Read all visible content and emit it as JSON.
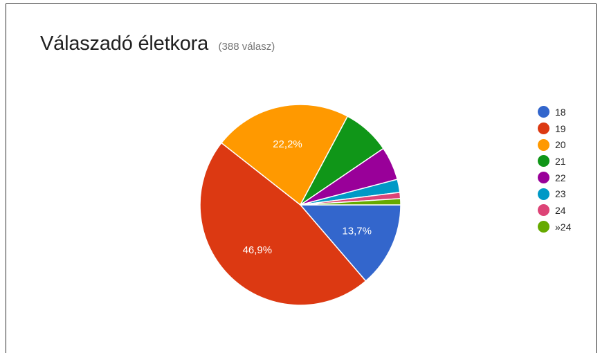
{
  "header": {
    "title": "Válaszadó életkora",
    "response_count": "(388 válasz)"
  },
  "chart_data": {
    "type": "pie",
    "title": "Válaszadó életkora",
    "subtitle": "(388 válasz)",
    "legend_position": "right",
    "categories": [
      "18",
      "19",
      "20",
      "21",
      "22",
      "23",
      "24",
      "»24"
    ],
    "values": [
      13.7,
      46.9,
      22.2,
      7.7,
      5.4,
      2.1,
      1.0,
      1.0
    ],
    "labels": [
      "13,7%",
      "46,9%",
      "22,2%",
      "",
      "",
      "",
      "",
      ""
    ],
    "colors": [
      "#3366cc",
      "#dc3912",
      "#ff9900",
      "#109618",
      "#990099",
      "#0099c6",
      "#dd4477",
      "#66aa00"
    ],
    "start_angle_deg": 90
  }
}
